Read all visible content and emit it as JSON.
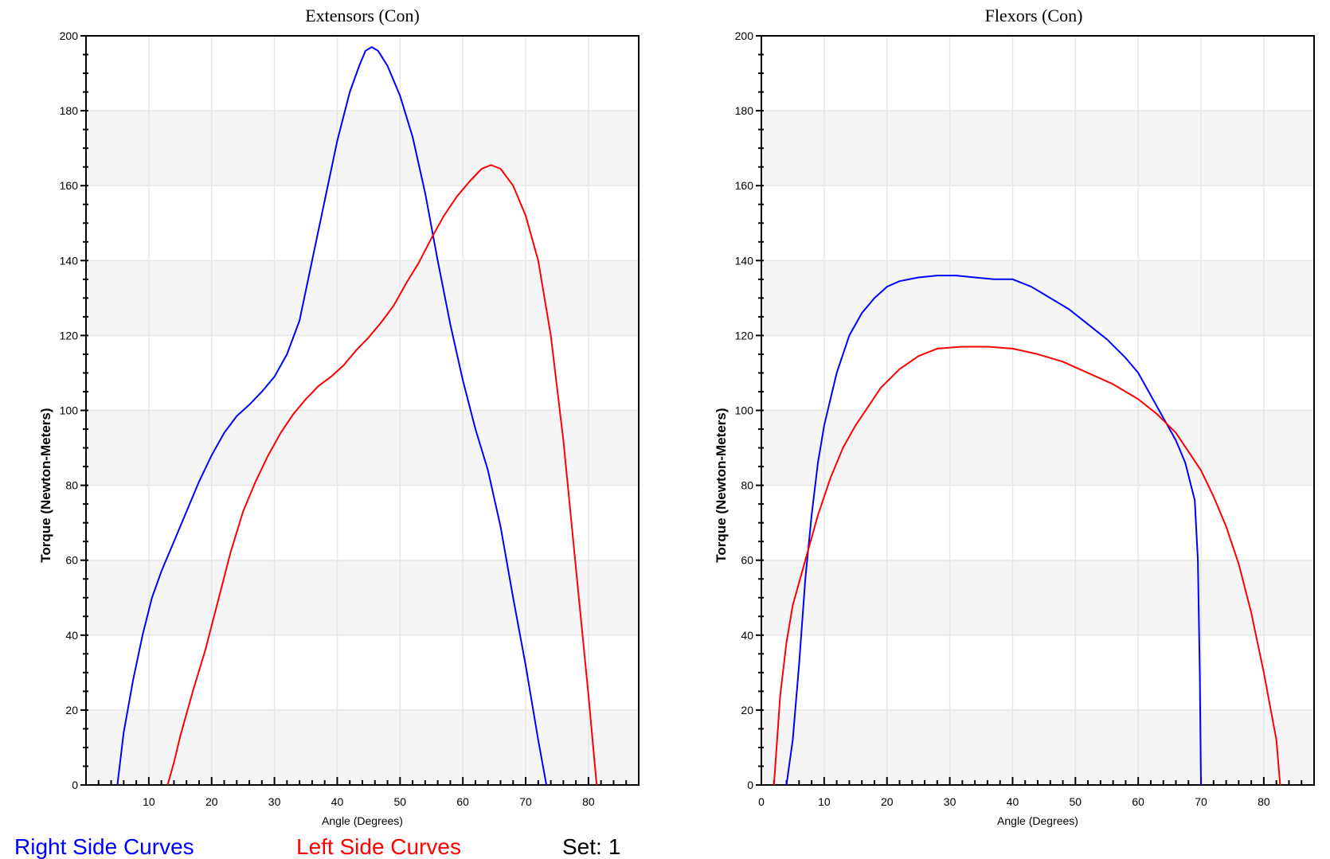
{
  "legend": {
    "right_label": "Right Side Curves",
    "left_label": "Left Side Curves",
    "set_label": "Set:",
    "set_value": "1"
  },
  "colors": {
    "right": "#0000ff",
    "left": "#ff0000",
    "band": "#f5f5f5",
    "grid": "#e6e6e6",
    "axis": "#000000"
  },
  "chart_data": [
    {
      "type": "line",
      "title": "Extensors (Con)",
      "xlabel": "Angle (Degrees)",
      "ylabel": "Torque (Newton-Meters)",
      "xlim": [
        0,
        88
      ],
      "ylim": [
        0,
        200
      ],
      "xticks": [
        10,
        20,
        30,
        40,
        50,
        60,
        70,
        80
      ],
      "yticks": [
        0,
        20,
        40,
        60,
        80,
        100,
        120,
        140,
        160,
        180,
        200
      ],
      "grid": true,
      "series": [
        {
          "name": "Right Side",
          "color": "#0000ff",
          "points": [
            [
              5,
              0
            ],
            [
              6,
              14
            ],
            [
              7.5,
              28
            ],
            [
              9,
              40
            ],
            [
              10.5,
              50
            ],
            [
              12,
              57
            ],
            [
              14,
              65
            ],
            [
              16,
              73
            ],
            [
              18,
              81
            ],
            [
              20,
              88
            ],
            [
              22,
              94
            ],
            [
              24,
              98.5
            ],
            [
              26,
              101.5
            ],
            [
              28,
              105
            ],
            [
              30,
              109
            ],
            [
              32,
              115
            ],
            [
              34,
              124
            ],
            [
              36,
              140
            ],
            [
              38,
              156
            ],
            [
              40,
              172
            ],
            [
              42,
              185
            ],
            [
              43.5,
              192
            ],
            [
              44.5,
              196
            ],
            [
              45.5,
              197
            ],
            [
              46.5,
              196
            ],
            [
              48,
              192
            ],
            [
              50,
              184
            ],
            [
              52,
              173
            ],
            [
              54,
              158
            ],
            [
              56,
              140
            ],
            [
              58,
              123
            ],
            [
              60,
              108
            ],
            [
              62,
              95
            ],
            [
              64,
              84
            ],
            [
              66,
              69
            ],
            [
              68,
              50
            ],
            [
              70,
              32
            ],
            [
              72,
              12
            ],
            [
              73.3,
              0
            ]
          ]
        },
        {
          "name": "Left Side",
          "color": "#ff0000",
          "points": [
            [
              13,
              0
            ],
            [
              14,
              6
            ],
            [
              15,
              13
            ],
            [
              17,
              25
            ],
            [
              19,
              36
            ],
            [
              21,
              49
            ],
            [
              23,
              62
            ],
            [
              25,
              73
            ],
            [
              27,
              81
            ],
            [
              29,
              88
            ],
            [
              31,
              94
            ],
            [
              33,
              99
            ],
            [
              35,
              103
            ],
            [
              37,
              106.5
            ],
            [
              39,
              109
            ],
            [
              41,
              112
            ],
            [
              43,
              116
            ],
            [
              45,
              119.5
            ],
            [
              47,
              123.5
            ],
            [
              49,
              128
            ],
            [
              51,
              134
            ],
            [
              53,
              139.5
            ],
            [
              55,
              146
            ],
            [
              57,
              152
            ],
            [
              59,
              157
            ],
            [
              61,
              161
            ],
            [
              63,
              164.5
            ],
            [
              64.5,
              165.5
            ],
            [
              66,
              164.5
            ],
            [
              68,
              160
            ],
            [
              70,
              152
            ],
            [
              72,
              140
            ],
            [
              74,
              120
            ],
            [
              76,
              92
            ],
            [
              78,
              58
            ],
            [
              80,
              24
            ],
            [
              81.3,
              0
            ]
          ]
        }
      ]
    },
    {
      "type": "line",
      "title": "Flexors (Con)",
      "xlabel": "Angle (Degrees)",
      "ylabel": "Torque (Newton-Meters)",
      "xlim": [
        0,
        88
      ],
      "ylim": [
        0,
        200
      ],
      "xticks": [
        0,
        10,
        20,
        30,
        40,
        50,
        60,
        70,
        80
      ],
      "yticks": [
        0,
        20,
        40,
        60,
        80,
        100,
        120,
        140,
        160,
        180,
        200
      ],
      "grid": true,
      "series": [
        {
          "name": "Right Side",
          "color": "#0000ff",
          "points": [
            [
              4,
              0
            ],
            [
              5,
              12
            ],
            [
              6,
              32
            ],
            [
              7,
              55
            ],
            [
              8,
              72
            ],
            [
              9,
              86
            ],
            [
              10,
              96
            ],
            [
              12,
              110
            ],
            [
              14,
              120
            ],
            [
              16,
              126
            ],
            [
              18,
              130
            ],
            [
              20,
              133
            ],
            [
              22,
              134.5
            ],
            [
              25,
              135.5
            ],
            [
              28,
              136
            ],
            [
              31,
              136
            ],
            [
              34,
              135.5
            ],
            [
              37,
              135
            ],
            [
              40,
              135
            ],
            [
              43,
              133
            ],
            [
              46,
              130
            ],
            [
              49,
              127
            ],
            [
              52,
              123
            ],
            [
              55,
              119
            ],
            [
              58,
              114
            ],
            [
              60,
              110
            ],
            [
              62,
              104
            ],
            [
              64,
              98
            ],
            [
              66,
              92
            ],
            [
              67.5,
              86
            ],
            [
              69,
              76
            ],
            [
              69.5,
              60
            ],
            [
              69.8,
              30
            ],
            [
              70,
              0
            ]
          ]
        },
        {
          "name": "Left Side",
          "color": "#ff0000",
          "points": [
            [
              2,
              0
            ],
            [
              3,
              24
            ],
            [
              4,
              38
            ],
            [
              5,
              48
            ],
            [
              7,
              60
            ],
            [
              9,
              72
            ],
            [
              11,
              82
            ],
            [
              13,
              90
            ],
            [
              15,
              96
            ],
            [
              17,
              101
            ],
            [
              19,
              106
            ],
            [
              22,
              111
            ],
            [
              25,
              114.5
            ],
            [
              28,
              116.5
            ],
            [
              32,
              117
            ],
            [
              36,
              117
            ],
            [
              40,
              116.5
            ],
            [
              44,
              115
            ],
            [
              48,
              113
            ],
            [
              52,
              110
            ],
            [
              56,
              107
            ],
            [
              60,
              103
            ],
            [
              63,
              99
            ],
            [
              66,
              94
            ],
            [
              68,
              89
            ],
            [
              70,
              84
            ],
            [
              72,
              77
            ],
            [
              74,
              69
            ],
            [
              76,
              59
            ],
            [
              78,
              46
            ],
            [
              80,
              30
            ],
            [
              82,
              12
            ],
            [
              82.6,
              0
            ]
          ]
        }
      ]
    }
  ]
}
